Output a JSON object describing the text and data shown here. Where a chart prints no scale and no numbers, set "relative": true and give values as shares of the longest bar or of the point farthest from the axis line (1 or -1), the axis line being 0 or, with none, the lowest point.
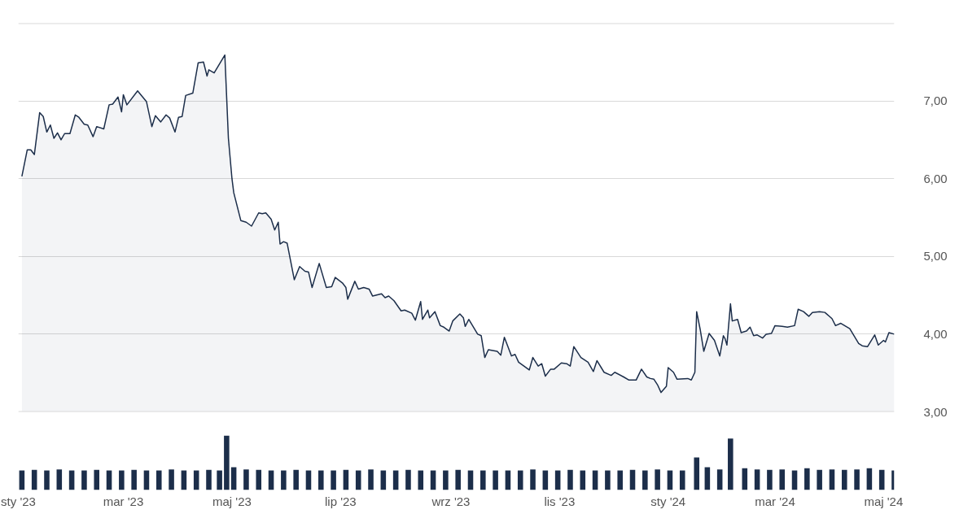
{
  "chart_data": [
    {
      "type": "area",
      "xlim": [
        "2023-01-01",
        "2024-05-07"
      ],
      "ylim": [
        3,
        8
      ],
      "grid": "y",
      "tick_labels": "y",
      "yticks": [
        {
          "value": 3,
          "label": "3,00"
        },
        {
          "value": 4,
          "label": "4,00"
        },
        {
          "value": 5,
          "label": "5,00"
        },
        {
          "value": 6,
          "label": "6,00"
        },
        {
          "value": 7,
          "label": "7,00"
        },
        {
          "value": 8,
          "label": null
        }
      ],
      "series": [
        {
          "color": "#1c2e4a",
          "x": [
            "2023-01-03",
            "2023-01-06",
            "2023-01-08",
            "2023-01-10",
            "2023-01-13",
            "2023-01-15",
            "2023-01-17",
            "2023-01-19",
            "2023-01-21",
            "2023-01-23",
            "2023-01-25",
            "2023-01-27",
            "2023-01-30",
            "2023-02-02",
            "2023-02-04",
            "2023-02-07",
            "2023-02-09",
            "2023-02-12",
            "2023-02-14",
            "2023-02-18",
            "2023-02-21",
            "2023-02-23",
            "2023-02-26",
            "2023-02-28",
            "2023-03-01",
            "2023-03-03",
            "2023-03-09",
            "2023-03-14",
            "2023-03-17",
            "2023-03-19",
            "2023-03-22",
            "2023-03-25",
            "2023-03-27",
            "2023-03-30",
            "2023-04-01",
            "2023-04-03",
            "2023-04-05",
            "2023-04-09",
            "2023-04-12",
            "2023-04-15",
            "2023-04-17",
            "2023-04-18",
            "2023-04-21",
            "2023-04-27",
            "2023-04-29",
            "2023-05-01",
            "2023-05-02",
            "2023-05-06",
            "2023-05-09",
            "2023-05-12",
            "2023-05-16",
            "2023-05-18",
            "2023-05-20",
            "2023-05-23",
            "2023-05-25",
            "2023-05-27",
            "2023-05-28",
            "2023-05-30",
            "2023-06-01",
            "2023-06-05",
            "2023-06-08",
            "2023-06-11",
            "2023-06-13",
            "2023-06-15",
            "2023-06-19",
            "2023-06-23",
            "2023-06-26",
            "2023-06-28",
            "2023-07-02",
            "2023-07-04",
            "2023-07-05",
            "2023-07-09",
            "2023-07-11",
            "2023-07-14",
            "2023-07-17",
            "2023-07-19",
            "2023-07-24",
            "2023-07-26",
            "2023-07-28",
            "2023-07-31",
            "2023-08-04",
            "2023-08-06",
            "2023-08-10",
            "2023-08-12",
            "2023-08-15",
            "2023-08-16",
            "2023-08-19",
            "2023-08-20",
            "2023-08-23",
            "2023-08-26",
            "2023-08-28",
            "2023-08-31",
            "2023-09-02",
            "2023-09-06",
            "2023-09-08",
            "2023-09-09",
            "2023-09-11",
            "2023-09-16",
            "2023-09-18",
            "2023-09-20",
            "2023-09-22",
            "2023-09-27",
            "2023-09-29",
            "2023-10-01",
            "2023-10-05",
            "2023-10-07",
            "2023-10-09",
            "2023-10-15",
            "2023-10-17",
            "2023-10-20",
            "2023-10-22",
            "2023-10-24",
            "2023-10-27",
            "2023-10-29",
            "2023-11-02",
            "2023-11-05",
            "2023-11-07",
            "2023-11-09",
            "2023-11-13",
            "2023-11-17",
            "2023-11-20",
            "2023-11-22",
            "2023-11-26",
            "2023-11-30",
            "2023-12-02",
            "2023-12-07",
            "2023-12-10",
            "2023-12-14",
            "2023-12-17",
            "2023-12-20",
            "2023-12-22",
            "2023-12-24",
            "2023-12-26",
            "2023-12-28",
            "2023-12-31",
            "2024-01-01",
            "2024-01-04",
            "2024-01-06",
            "2024-01-12",
            "2024-01-14",
            "2024-01-16",
            "2024-01-17",
            "2024-01-19",
            "2024-01-21",
            "2024-01-24",
            "2024-01-27",
            "2024-01-30",
            "2024-02-01",
            "2024-02-02",
            "2024-02-03",
            "2024-02-05",
            "2024-02-06",
            "2024-02-09",
            "2024-02-11",
            "2024-02-14",
            "2024-02-16",
            "2024-02-18",
            "2024-02-20",
            "2024-02-23",
            "2024-02-25",
            "2024-02-28",
            "2024-03-01",
            "2024-03-05",
            "2024-03-08",
            "2024-03-12",
            "2024-03-14",
            "2024-03-17",
            "2024-03-20",
            "2024-03-22",
            "2024-03-26",
            "2024-03-29",
            "2024-04-02",
            "2024-04-04",
            "2024-04-07",
            "2024-04-12",
            "2024-04-17",
            "2024-04-19",
            "2024-04-22",
            "2024-04-26",
            "2024-04-28",
            "2024-05-01",
            "2024-05-02",
            "2024-05-04",
            "2024-05-07"
          ],
          "values": [
            6.03,
            6.37,
            6.37,
            6.31,
            6.85,
            6.8,
            6.6,
            6.69,
            6.52,
            6.59,
            6.5,
            6.58,
            6.58,
            6.82,
            6.79,
            6.7,
            6.69,
            6.54,
            6.67,
            6.64,
            6.95,
            6.96,
            7.05,
            6.86,
            7.08,
            6.95,
            7.13,
            6.99,
            6.67,
            6.81,
            6.73,
            6.82,
            6.78,
            6.6,
            6.79,
            6.8,
            7.07,
            7.1,
            7.49,
            7.5,
            7.32,
            7.4,
            7.36,
            7.59,
            6.52,
            6.0,
            5.82,
            5.46,
            5.44,
            5.39,
            5.56,
            5.55,
            5.56,
            5.48,
            5.34,
            5.44,
            5.16,
            5.19,
            5.17,
            4.7,
            4.87,
            4.81,
            4.8,
            4.6,
            4.91,
            4.6,
            4.61,
            4.73,
            4.66,
            4.6,
            4.45,
            4.68,
            4.58,
            4.6,
            4.58,
            4.49,
            4.52,
            4.47,
            4.49,
            4.43,
            4.3,
            4.31,
            4.27,
            4.18,
            4.42,
            4.19,
            4.31,
            4.21,
            4.29,
            4.11,
            4.09,
            4.04,
            4.17,
            4.26,
            4.21,
            4.1,
            4.19,
            4.0,
            3.98,
            3.7,
            3.8,
            3.78,
            3.73,
            3.96,
            3.72,
            3.74,
            3.64,
            3.54,
            3.7,
            3.59,
            3.62,
            3.46,
            3.55,
            3.55,
            3.63,
            3.62,
            3.59,
            3.84,
            3.7,
            3.64,
            3.52,
            3.66,
            3.51,
            3.47,
            3.51,
            3.45,
            3.41,
            3.41,
            3.55,
            3.45,
            3.43,
            3.42,
            3.35,
            3.25,
            3.33,
            3.57,
            3.51,
            3.42,
            3.43,
            3.41,
            3.51,
            4.29,
            4.06,
            3.78,
            4.01,
            3.92,
            3.72,
            3.98,
            3.94,
            3.86,
            4.39,
            4.17,
            4.19,
            4.02,
            4.04,
            4.09,
            3.98,
            3.99,
            3.95,
            4.0,
            4.01,
            4.11,
            4.1,
            4.09,
            4.11,
            4.32,
            4.29,
            4.23,
            4.28,
            4.29,
            4.28,
            4.2,
            4.11,
            4.14,
            4.07,
            3.88,
            3.85,
            3.84,
            3.99,
            3.86,
            3.92,
            3.9,
            4.02,
            4.0
          ]
        }
      ]
    },
    {
      "type": "bar",
      "relative": true,
      "xlim": [
        "2023-01-01",
        "2024-05-07"
      ],
      "tick_labels": "x",
      "xticks": [
        {
          "value": "2023-01-01",
          "label": "sty '23"
        },
        {
          "value": "2023-03-01",
          "label": "mar '23"
        },
        {
          "value": "2023-05-01",
          "label": "maj '23"
        },
        {
          "value": "2023-07-01",
          "label": "lip '23"
        },
        {
          "value": "2023-09-01",
          "label": "wrz '23"
        },
        {
          "value": "2023-11-01",
          "label": "lis '23"
        },
        {
          "value": "2024-01-01",
          "label": "sty '24"
        },
        {
          "value": "2024-03-01",
          "label": "mar '24"
        },
        {
          "value": "2024-05-01",
          "label": "maj '24"
        }
      ],
      "series": [
        {
          "color": "#1c2e4a",
          "x": [
            "2023-01-03",
            "2023-01-10",
            "2023-01-17",
            "2023-01-24",
            "2023-01-31",
            "2023-02-07",
            "2023-02-14",
            "2023-02-21",
            "2023-02-28",
            "2023-03-07",
            "2023-03-14",
            "2023-03-21",
            "2023-03-28",
            "2023-04-04",
            "2023-04-11",
            "2023-04-18",
            "2023-04-24",
            "2023-04-28",
            "2023-05-02",
            "2023-05-09",
            "2023-05-16",
            "2023-05-23",
            "2023-05-30",
            "2023-06-06",
            "2023-06-13",
            "2023-06-20",
            "2023-06-27",
            "2023-07-04",
            "2023-07-11",
            "2023-07-18",
            "2023-07-25",
            "2023-08-01",
            "2023-08-08",
            "2023-08-15",
            "2023-08-22",
            "2023-08-29",
            "2023-09-05",
            "2023-09-12",
            "2023-09-19",
            "2023-09-26",
            "2023-10-03",
            "2023-10-10",
            "2023-10-17",
            "2023-10-24",
            "2023-10-31",
            "2023-11-07",
            "2023-11-14",
            "2023-11-21",
            "2023-11-28",
            "2023-12-05",
            "2023-12-12",
            "2023-12-19",
            "2023-12-26",
            "2024-01-02",
            "2024-01-09",
            "2024-01-17",
            "2024-01-23",
            "2024-01-30",
            "2024-02-05",
            "2024-02-13",
            "2024-02-20",
            "2024-02-27",
            "2024-03-05",
            "2024-03-12",
            "2024-03-19",
            "2024-03-26",
            "2024-04-02",
            "2024-04-09",
            "2024-04-16",
            "2024-04-23",
            "2024-04-30",
            "2024-05-07"
          ],
          "values": [
            0.36,
            0.37,
            0.36,
            0.38,
            0.36,
            0.36,
            0.37,
            0.36,
            0.36,
            0.37,
            0.36,
            0.36,
            0.38,
            0.36,
            0.36,
            0.37,
            0.36,
            1.0,
            0.42,
            0.38,
            0.37,
            0.36,
            0.36,
            0.37,
            0.36,
            0.36,
            0.36,
            0.37,
            0.36,
            0.38,
            0.36,
            0.36,
            0.37,
            0.36,
            0.36,
            0.36,
            0.37,
            0.36,
            0.36,
            0.36,
            0.36,
            0.36,
            0.38,
            0.36,
            0.36,
            0.37,
            0.36,
            0.36,
            0.36,
            0.36,
            0.37,
            0.36,
            0.38,
            0.36,
            0.36,
            0.6,
            0.42,
            0.38,
            0.95,
            0.4,
            0.38,
            0.37,
            0.38,
            0.36,
            0.4,
            0.37,
            0.38,
            0.37,
            0.38,
            0.4,
            0.37,
            0.36
          ]
        }
      ]
    }
  ]
}
